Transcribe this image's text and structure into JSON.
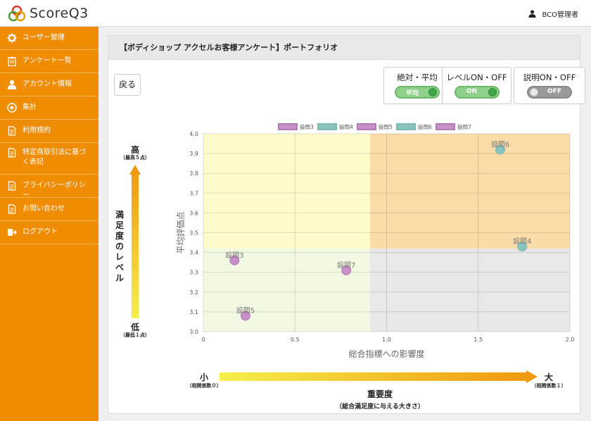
{
  "app": {
    "logo_text": "ScoreQ3",
    "user_label": "BCO管理者"
  },
  "sidebar": {
    "items": [
      {
        "label": "ユーザー管理",
        "icon": "gear-icon"
      },
      {
        "label": "アンケート一覧",
        "icon": "clipboard-icon"
      },
      {
        "label": "アカウント情報",
        "icon": "user-icon"
      },
      {
        "label": "集計",
        "icon": "plus-circle-icon"
      },
      {
        "label": "利用規約",
        "icon": "document-icon"
      },
      {
        "label": "特定商取引法に基づく表記",
        "icon": "document-icon"
      },
      {
        "label": "プライバシーポリシー",
        "icon": "document-icon"
      },
      {
        "label": "お問い合わせ",
        "icon": "document-icon"
      },
      {
        "label": "ログアウト",
        "icon": "logout-icon"
      }
    ]
  },
  "panel": {
    "title": "【ボディショップ アクセルお客様アンケート】ポートフォリオ",
    "back_label": "戻る",
    "toggles": [
      {
        "title": "絶対・平均",
        "state_label": "平均",
        "on": true
      },
      {
        "title": "レベルON・OFF",
        "state_label": "ON",
        "on": true
      },
      {
        "title": "説明ON・OFF",
        "state_label": "OFF",
        "on": false
      }
    ]
  },
  "satisfaction_scale": {
    "high": "高",
    "high_note": "（最高５点）",
    "title": "満足度のレベル",
    "low": "低",
    "low_note": "（最低１点）"
  },
  "importance_scale": {
    "small": "小",
    "small_note": "（相関係数０）",
    "large": "大",
    "large_note": "（相関係数１）",
    "title": "重要度",
    "subtitle": "（総合満足度に与える大きさ）"
  },
  "chart_data": {
    "type": "scatter",
    "xlabel": "総合指標への影響度",
    "ylabel": "平均評価点",
    "xlim": [
      0,
      2.0
    ],
    "ylim": [
      3.0,
      4.0
    ],
    "x_ticks": [
      "0",
      "0.5",
      "1.0",
      "1.5",
      "2.0"
    ],
    "y_ticks": [
      "3.0",
      "3.1",
      "3.2",
      "3.3",
      "3.4",
      "3.5",
      "3.6",
      "3.7",
      "3.8",
      "3.9",
      "4.0"
    ],
    "quadrant_split": {
      "x": 0.91,
      "y": 3.42
    },
    "grid": true,
    "legend_position": "top",
    "series": [
      {
        "name": "設問3",
        "x": 0.17,
        "y": 3.36,
        "color": "#c890c8",
        "legend_color": "#b27cb2"
      },
      {
        "name": "設問4",
        "x": 1.74,
        "y": 3.43,
        "color": "#88c4bc",
        "legend_color": "#7ab8b2"
      },
      {
        "name": "設問5",
        "x": 0.23,
        "y": 3.08,
        "color": "#c890c8",
        "legend_color": "#b27cb2"
      },
      {
        "name": "設問6",
        "x": 1.62,
        "y": 3.92,
        "color": "#88c4bc",
        "legend_color": "#7ab8b2"
      },
      {
        "name": "設問7",
        "x": 0.78,
        "y": 3.31,
        "color": "#c890c8",
        "legend_color": "#b27cb2"
      }
    ],
    "quadrant_colors": {
      "top_left": "#fefccb",
      "top_right": "#fadca8",
      "bottom_left": "#f2f9e2",
      "bottom_right": "#e8e8e8"
    }
  }
}
